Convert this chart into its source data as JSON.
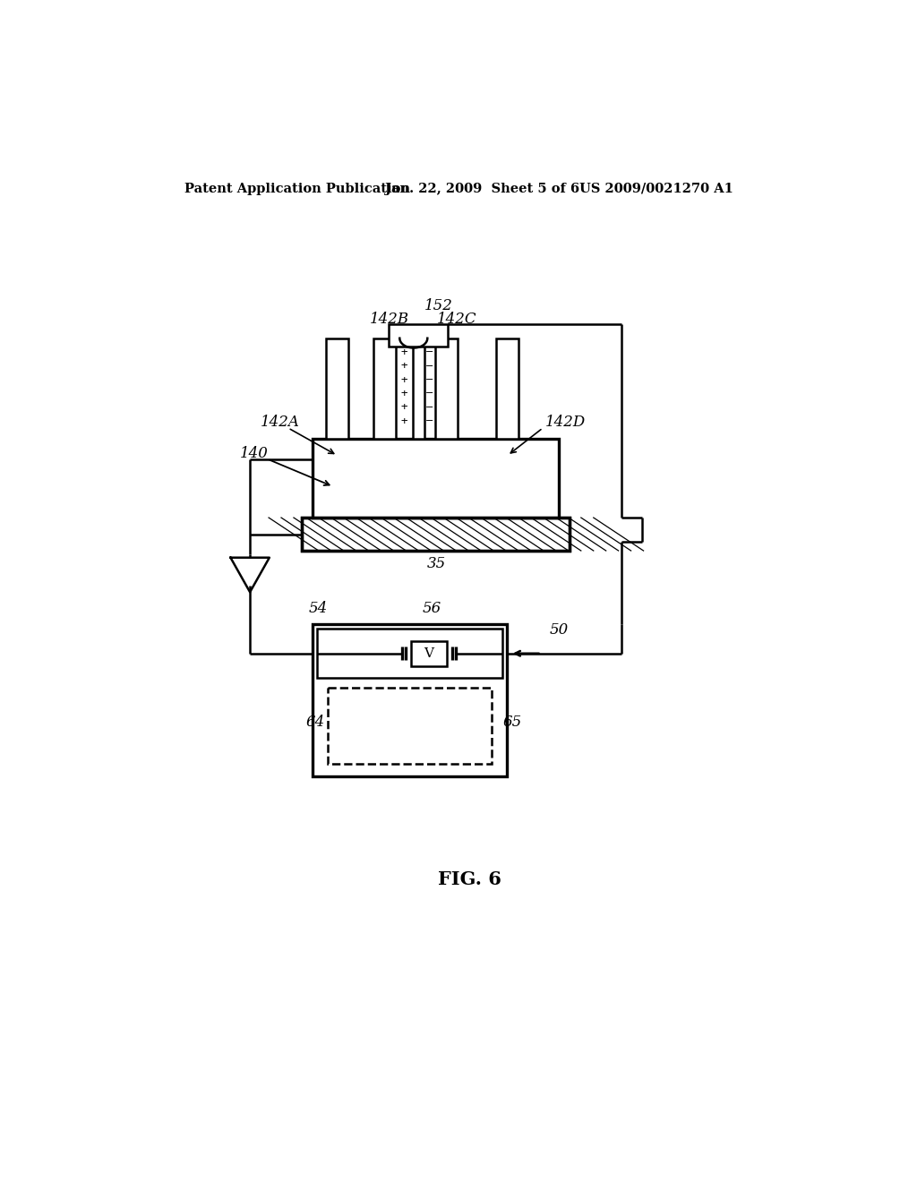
{
  "bg_color": "#ffffff",
  "lc": "#000000",
  "header_left": "Patent Application Publication",
  "header_mid": "Jan. 22, 2009  Sheet 5 of 6",
  "header_right": "US 2009/0021270 A1",
  "fig_label": "FIG. 6",
  "lw": 1.8,
  "lw2": 2.4
}
